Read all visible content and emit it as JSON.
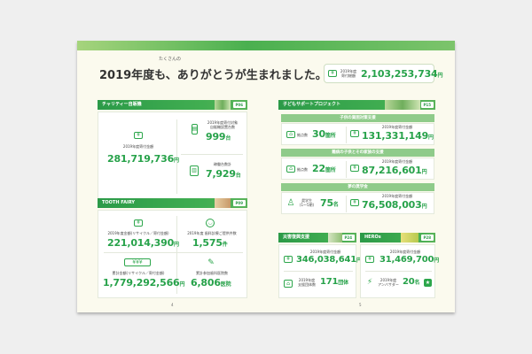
{
  "title": {
    "main": "2019年度も、ありがとうが生まれました。",
    "ruby": "たくさんの"
  },
  "total": {
    "label_line1": "2019年度",
    "label_line2": "寄付総額",
    "value": "2,103,253,734",
    "unit": "円"
  },
  "charity": {
    "header": "チャリティー自販機",
    "page": "P06",
    "donation": {
      "label": "2019年度寄付金額",
      "value": "281,719,736",
      "unit": "円"
    },
    "machines": {
      "label_line1": "2019年度寄付対象",
      "label_line2": "自販機設置台数",
      "value": "999",
      "unit": "台"
    },
    "cumulative": {
      "label": "稼働台数計",
      "value": "7,929",
      "unit": "台"
    }
  },
  "tooth": {
    "header": "TOOTH FAIRY",
    "page": "P09",
    "year_amount": {
      "label": "2019年度金額(リサイクル／寄付金額)",
      "value": "221,014,390",
      "unit": "円"
    },
    "year_count": {
      "label": "2019年度 歯科診療ご提供件数",
      "value": "1,575",
      "unit": "件"
    },
    "total_amount": {
      "label": "累計金額(リサイクル／寄付金額)",
      "value": "1,779,292,566",
      "unit": "円"
    },
    "clinics": {
      "label": "累計参加歯科医院数",
      "value": "6,806",
      "unit": "医院"
    }
  },
  "kids": {
    "header": "子どもサポートプロジェクト",
    "page": "P15",
    "poverty": {
      "sub": "子供の貧困対策支援",
      "left_label": "拠点数",
      "left_value": "30",
      "left_unit": "箇所",
      "right_label": "2019年度寄付金額",
      "right_value": "131,331,149",
      "right_unit": "円"
    },
    "illness": {
      "sub": "難病の子供とその家族の支援",
      "left_label": "拠点数",
      "left_value": "22",
      "left_unit": "箇所",
      "right_label": "2019年度寄付金額",
      "right_value": "87,216,601",
      "right_unit": "円"
    },
    "scholar": {
      "sub": "夢の奨学金",
      "left_label_line1": "奨学生",
      "left_label_line2": "(1～5期)",
      "left_value": "75",
      "left_unit": "名",
      "right_label": "2019年度寄付金額",
      "right_value": "76,508,003",
      "right_unit": "円"
    }
  },
  "disaster": {
    "header": "災害復興支援",
    "page": "P24",
    "amount": {
      "label": "2019年度寄付金額",
      "value": "346,038,641",
      "unit": "円"
    },
    "groups": {
      "label_line1": "2019年度",
      "label_line2": "支援団体数",
      "value": "171",
      "unit": "団体"
    }
  },
  "heroes": {
    "header": "HEROs",
    "page": "P28",
    "amount": {
      "label": "2019年度寄付金額",
      "value": "31,469,700",
      "unit": "円"
    },
    "ambassadors": {
      "label_line1": "2019年度",
      "label_line2": "アンバサダー",
      "value": "20",
      "unit": "名"
    }
  },
  "pages": {
    "left": "4",
    "right": "5"
  }
}
